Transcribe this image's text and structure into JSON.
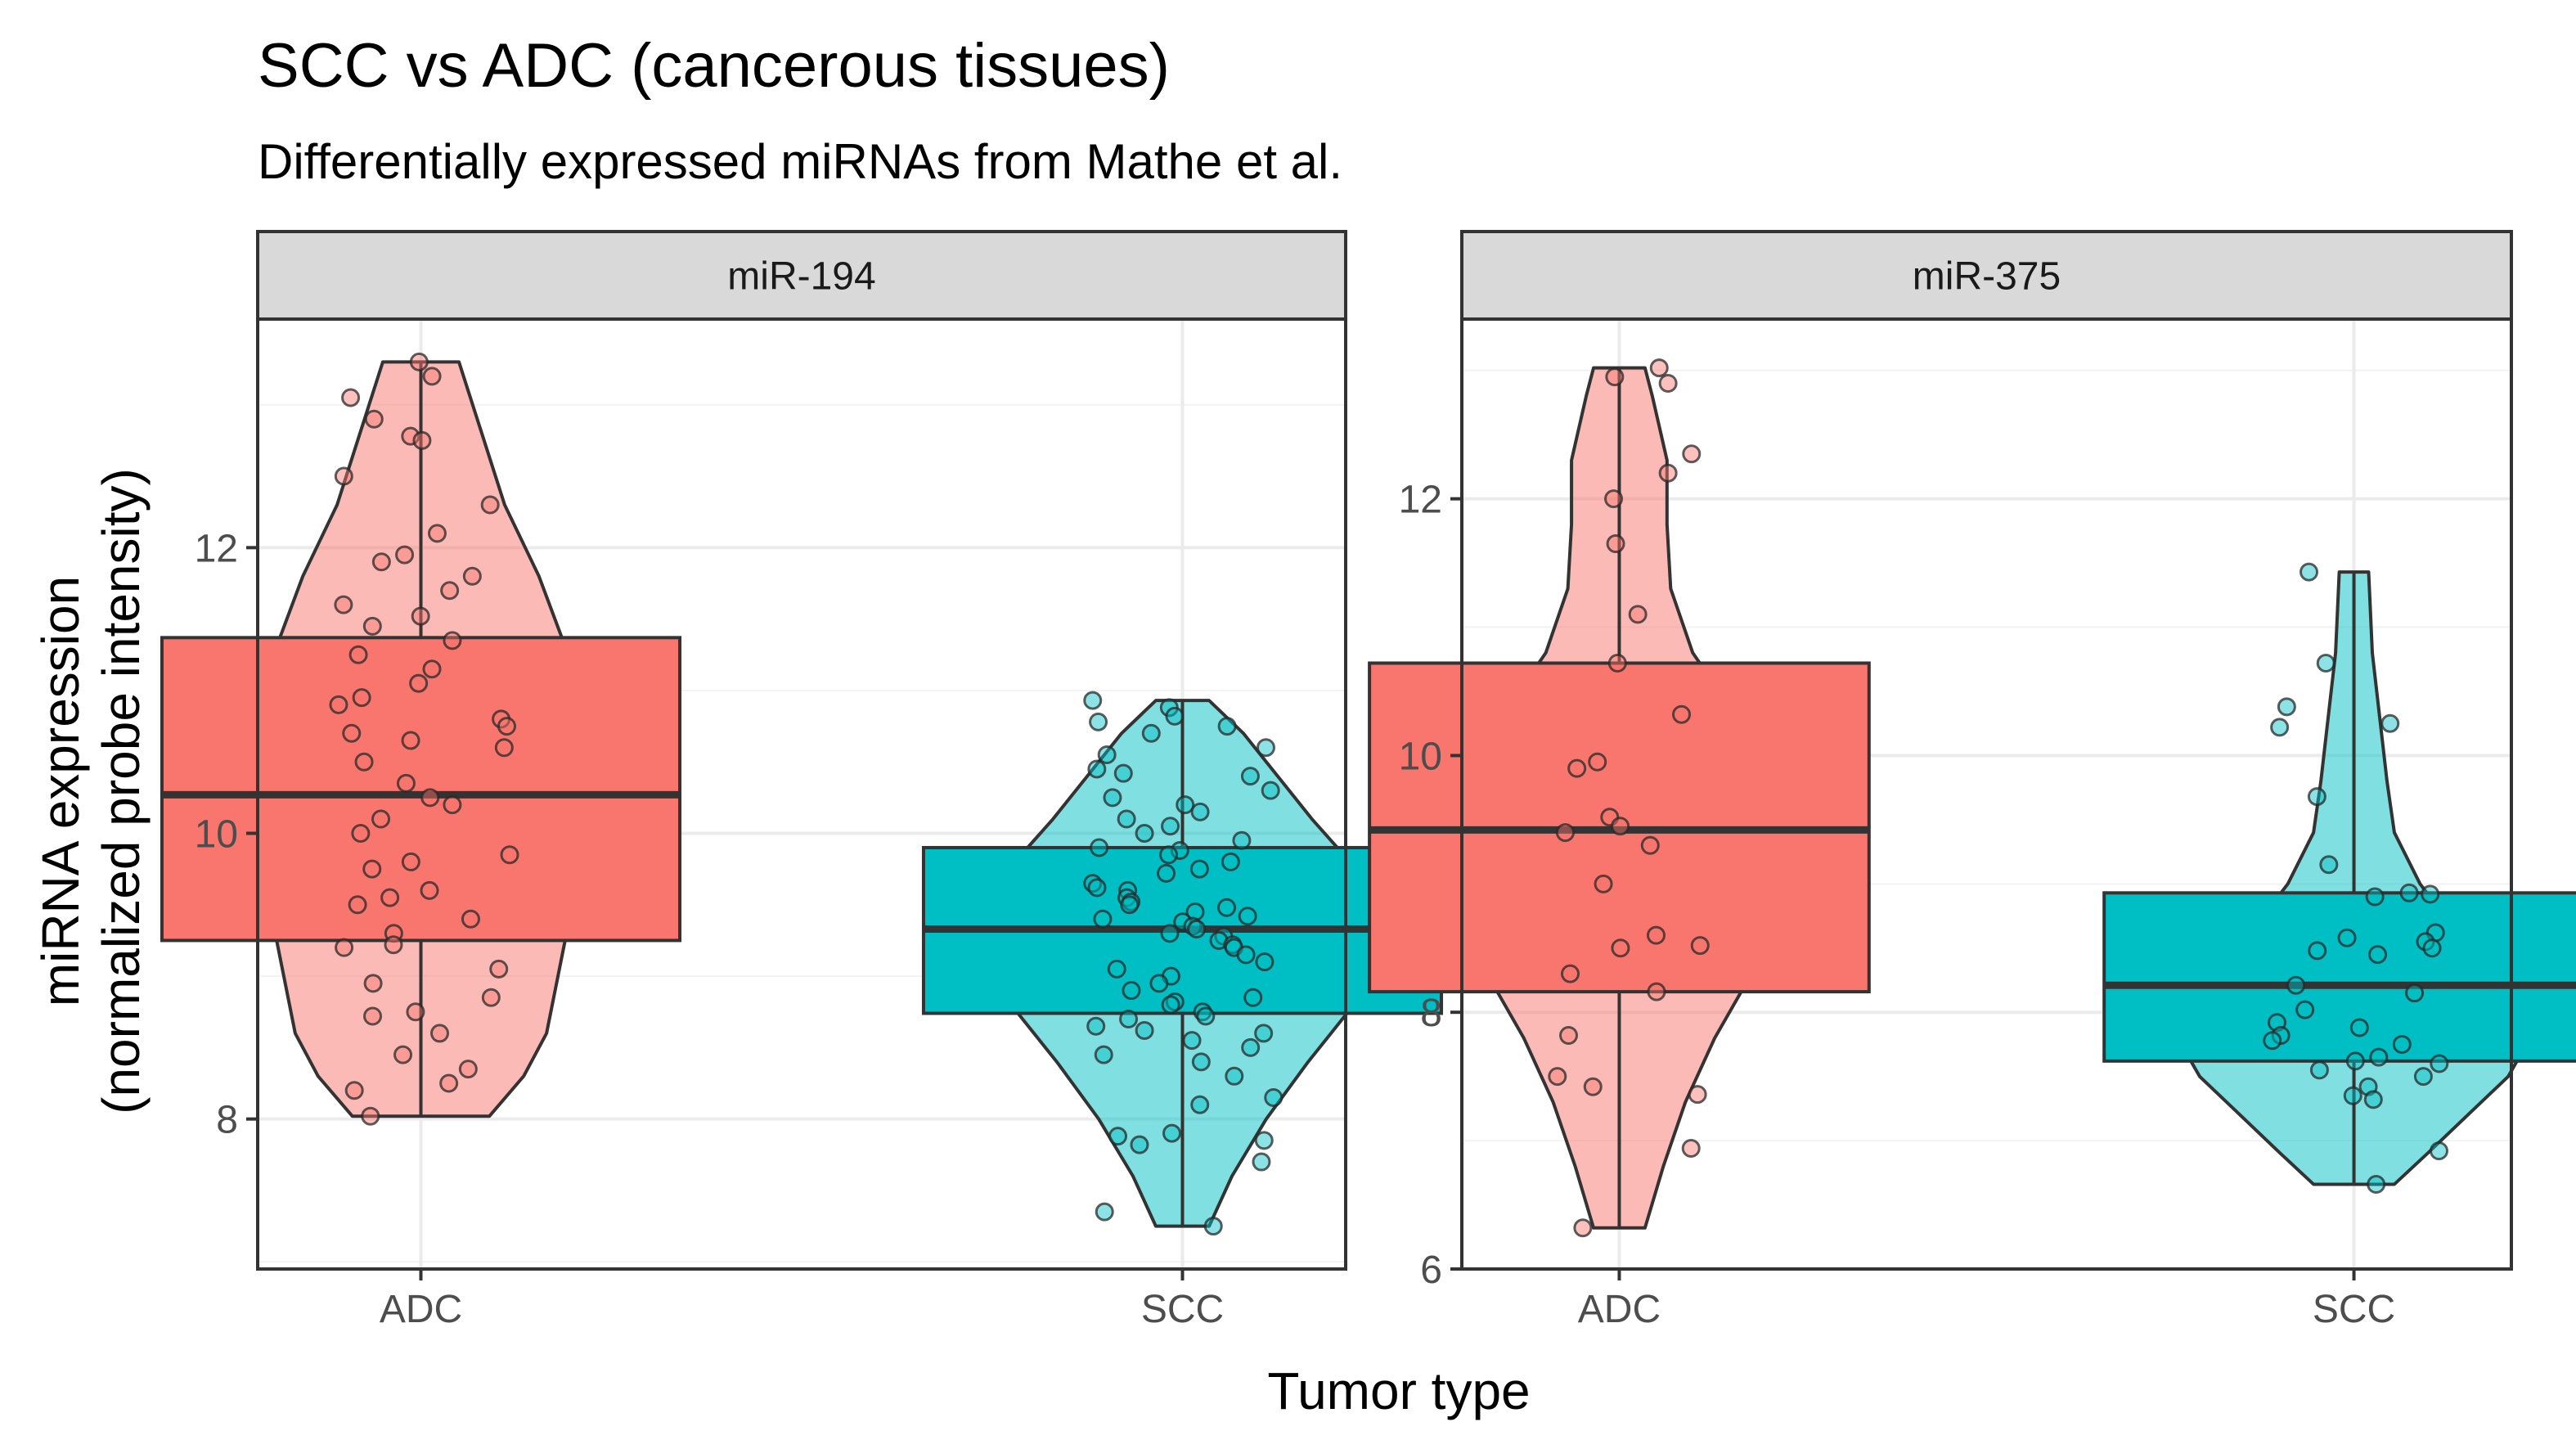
{
  "chart_data": {
    "type": "violin-box-jitter",
    "title": "SCC vs ADC (cancerous tissues)",
    "subtitle": "Differentially expressed miRNAs from Mathe et al.",
    "xlabel": "Tumor type",
    "ylabel_line1": "miRNA expression",
    "ylabel_line2": "(normalized probe intensity)",
    "categories": [
      "ADC",
      "SCC"
    ],
    "colors": {
      "ADC": "#F8766D",
      "SCC": "#00BFC4"
    },
    "grid": true,
    "legend": "none",
    "panels": [
      {
        "strip": "miR-194",
        "ylim": [
          6.95,
          13.6
        ],
        "yticks": [
          8,
          10,
          12
        ],
        "groups": [
          {
            "category": "ADC",
            "box": {
              "q1": 9.25,
              "median": 10.27,
              "q3": 11.37
            },
            "whiskers": [
              8.02,
              13.3
            ],
            "violin": [
              [
                8.02,
                0.18
              ],
              [
                8.3,
                0.27
              ],
              [
                8.6,
                0.33
              ],
              [
                9.0,
                0.36
              ],
              [
                9.4,
                0.39
              ],
              [
                9.8,
                0.41
              ],
              [
                10.3,
                0.42
              ],
              [
                10.8,
                0.41
              ],
              [
                11.3,
                0.38
              ],
              [
                11.8,
                0.31
              ],
              [
                12.3,
                0.22
              ],
              [
                12.8,
                0.16
              ],
              [
                13.3,
                0.1
              ]
            ],
            "points": [
              13.3,
              13.2,
              13.05,
              12.9,
              12.78,
              12.75,
              12.5,
              12.3,
              12.1,
              11.95,
              11.9,
              11.8,
              11.7,
              11.6,
              11.52,
              11.45,
              11.35,
              11.25,
              11.15,
              11.05,
              10.95,
              10.9,
              10.8,
              10.75,
              10.7,
              10.65,
              10.6,
              10.5,
              10.35,
              10.25,
              10.2,
              10.1,
              10.0,
              9.85,
              9.8,
              9.75,
              9.6,
              9.55,
              9.5,
              9.4,
              9.3,
              9.22,
              9.2,
              9.05,
              8.95,
              8.85,
              8.75,
              8.72,
              8.6,
              8.45,
              8.35,
              8.25,
              8.2,
              8.02
            ]
          },
          {
            "category": "SCC",
            "box": {
              "q1": 8.74,
              "median": 9.33,
              "q3": 9.9
            },
            "whiskers": [
              7.25,
              10.93
            ],
            "violin": [
              [
                7.25,
                0.07
              ],
              [
                7.6,
                0.13
              ],
              [
                8.0,
                0.22
              ],
              [
                8.4,
                0.33
              ],
              [
                8.8,
                0.45
              ],
              [
                9.2,
                0.52
              ],
              [
                9.5,
                0.52
              ],
              [
                9.8,
                0.44
              ],
              [
                10.1,
                0.34
              ],
              [
                10.4,
                0.25
              ],
              [
                10.7,
                0.16
              ],
              [
                10.93,
                0.07
              ]
            ],
            "points": [
              10.93,
              10.88,
              10.82,
              10.78,
              10.75,
              10.7,
              10.6,
              10.55,
              10.45,
              10.42,
              10.4,
              10.3,
              10.25,
              10.2,
              10.15,
              10.1,
              10.05,
              10.0,
              9.95,
              9.9,
              9.88,
              9.85,
              9.8,
              9.75,
              9.72,
              9.65,
              9.62,
              9.6,
              9.55,
              9.52,
              9.5,
              9.48,
              9.45,
              9.42,
              9.4,
              9.38,
              9.35,
              9.33,
              9.3,
              9.28,
              9.25,
              9.22,
              9.2,
              9.15,
              9.1,
              9.05,
              9.0,
              8.95,
              8.9,
              8.85,
              8.82,
              8.8,
              8.75,
              8.72,
              8.7,
              8.65,
              8.62,
              8.6,
              8.55,
              8.5,
              8.45,
              8.4,
              8.3,
              8.15,
              8.1,
              7.9,
              7.88,
              7.85,
              7.82,
              7.7,
              7.35,
              7.25
            ]
          }
        ]
      },
      {
        "strip": "miR-375",
        "ylim": [
          6.0,
          13.4
        ],
        "yticks": [
          6,
          8,
          10,
          12
        ],
        "groups": [
          {
            "category": "ADC",
            "box": {
              "q1": 8.16,
              "median": 9.42,
              "q3": 10.72
            },
            "whiskers": [
              6.32,
              13.02
            ],
            "violin": [
              [
                6.32,
                0.07
              ],
              [
                6.8,
                0.12
              ],
              [
                7.3,
                0.18
              ],
              [
                7.8,
                0.26
              ],
              [
                8.3,
                0.36
              ],
              [
                8.8,
                0.44
              ],
              [
                9.3,
                0.46
              ],
              [
                9.8,
                0.42
              ],
              [
                10.3,
                0.32
              ],
              [
                10.8,
                0.2
              ],
              [
                11.3,
                0.14
              ],
              [
                11.8,
                0.13
              ],
              [
                12.3,
                0.13
              ],
              [
                12.8,
                0.09
              ],
              [
                13.02,
                0.07
              ]
            ],
            "points": [
              13.02,
              12.95,
              12.9,
              12.35,
              12.2,
              12.0,
              11.65,
              11.1,
              10.72,
              10.32,
              9.95,
              9.9,
              9.52,
              9.45,
              9.4,
              9.3,
              9.0,
              8.6,
              8.52,
              8.5,
              8.3,
              8.16,
              7.82,
              7.5,
              7.42,
              7.36,
              6.94,
              6.32
            ]
          },
          {
            "category": "SCC",
            "box": {
              "q1": 7.62,
              "median": 8.21,
              "q3": 8.93
            },
            "whiskers": [
              6.66,
              11.43
            ],
            "violin": [
              [
                6.66,
                0.11
              ],
              [
                6.9,
                0.2
              ],
              [
                7.2,
                0.31
              ],
              [
                7.5,
                0.42
              ],
              [
                7.8,
                0.48
              ],
              [
                8.1,
                0.45
              ],
              [
                8.4,
                0.35
              ],
              [
                8.7,
                0.26
              ],
              [
                9.0,
                0.18
              ],
              [
                9.4,
                0.11
              ],
              [
                9.8,
                0.09
              ],
              [
                10.3,
                0.07
              ],
              [
                10.8,
                0.05
              ],
              [
                11.43,
                0.04
              ]
            ],
            "points": [
              11.43,
              10.72,
              10.38,
              10.25,
              10.22,
              9.68,
              9.15,
              8.93,
              8.92,
              8.9,
              8.62,
              8.58,
              8.55,
              8.5,
              8.48,
              8.45,
              8.21,
              8.15,
              8.02,
              7.92,
              7.88,
              7.82,
              7.78,
              7.75,
              7.65,
              7.62,
              7.6,
              7.55,
              7.5,
              7.42,
              7.35,
              7.32,
              6.92,
              6.66
            ]
          }
        ]
      }
    ]
  }
}
